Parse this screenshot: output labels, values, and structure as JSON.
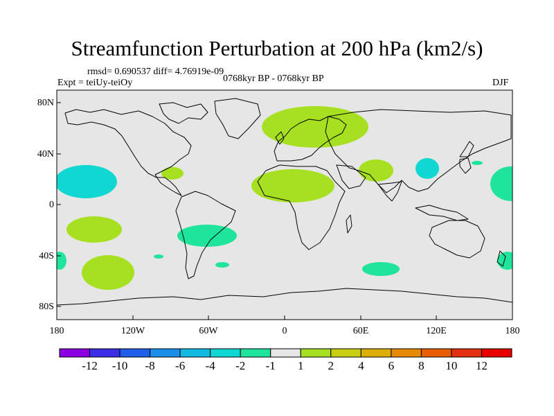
{
  "title": "Streamfunction Perturbation at 200 hPa (km2/s)",
  "stats_line": "rmsd= 0.690537  diff= 4.76919e-09",
  "expt_line": "Expt = teiUy-teiOy",
  "period_line": "0768kyr BP - 0768kyr BP",
  "season": "DJF",
  "y_axis_labels": [
    "80N",
    "40N",
    "0",
    "40S",
    "80S"
  ],
  "x_axis_labels": [
    "180",
    "120W",
    "60W",
    "0",
    "60E",
    "120E",
    "180"
  ],
  "colorbar": {
    "labels": [
      "-12",
      "-10",
      "-8",
      "-6",
      "-4",
      "-2",
      "-1",
      "1",
      "2",
      "4",
      "6",
      "8",
      "10",
      "12"
    ],
    "colors": [
      "#8a00e0",
      "#3b2ee6",
      "#1e5ee8",
      "#1a8ee8",
      "#12b9e0",
      "#10d7d1",
      "#1fe49c",
      "#e6e6e6",
      "#a6e020",
      "#c8cf12",
      "#dcae0a",
      "#e68a06",
      "#e65d06",
      "#e23010",
      "#e80000"
    ]
  },
  "map": {
    "background_color": "#e6e6e6",
    "coastline_color": "#000000",
    "anomaly_regions": [
      {
        "region": "north-atlantic-europe",
        "level": "2",
        "color": "#a6e020"
      },
      {
        "region": "north-africa",
        "level": "2",
        "color": "#a6e020"
      },
      {
        "region": "arabia-india",
        "level": "2",
        "color": "#a6e020"
      },
      {
        "region": "gulf-of-mexico",
        "level": "2",
        "color": "#a6e020"
      },
      {
        "region": "south-pacific-west",
        "level": "2",
        "color": "#a6e020"
      },
      {
        "region": "south-pacific-south",
        "level": "2",
        "color": "#a6e020"
      },
      {
        "region": "south-atlantic",
        "level": "-1",
        "color": "#1fe49c"
      },
      {
        "region": "north-pacific-east",
        "level": "-2",
        "color": "#10d7d1"
      },
      {
        "region": "east-asia",
        "level": "-2",
        "color": "#10d7d1"
      },
      {
        "region": "north-pacific-west",
        "level": "-1",
        "color": "#1fe49c"
      },
      {
        "region": "indian-ocean-south",
        "level": "-1",
        "color": "#1fe49c"
      },
      {
        "region": "south-pacific-far-east",
        "level": "-1",
        "color": "#1fe49c"
      },
      {
        "region": "south-pacific-far-west",
        "level": "-1",
        "color": "#1fe49c"
      }
    ]
  }
}
